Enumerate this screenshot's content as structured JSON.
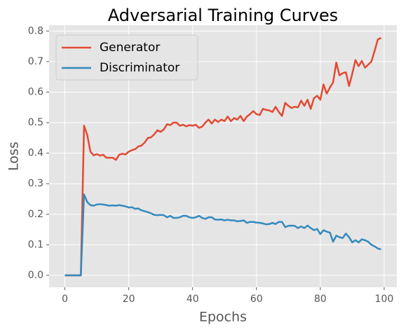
{
  "chart_data": {
    "type": "line",
    "title": "Adversarial Training Curves",
    "xlabel": "Epochs",
    "ylabel": "Loss",
    "x": [
      0,
      1,
      2,
      3,
      4,
      5,
      6,
      7,
      8,
      9,
      10,
      11,
      12,
      13,
      14,
      15,
      16,
      17,
      18,
      19,
      20,
      21,
      22,
      23,
      24,
      25,
      26,
      27,
      28,
      29,
      30,
      31,
      32,
      33,
      34,
      35,
      36,
      37,
      38,
      39,
      40,
      41,
      42,
      43,
      44,
      45,
      46,
      47,
      48,
      49,
      50,
      51,
      52,
      53,
      54,
      55,
      56,
      57,
      58,
      59,
      60,
      61,
      62,
      63,
      64,
      65,
      66,
      67,
      68,
      69,
      70,
      71,
      72,
      73,
      74,
      75,
      76,
      77,
      78,
      79,
      80,
      81,
      82,
      83,
      84,
      85,
      86,
      87,
      88,
      89,
      90,
      91,
      92,
      93,
      94,
      95,
      96,
      97,
      98,
      99
    ],
    "series": [
      {
        "name": "Generator",
        "color": "#E24A33",
        "values": [
          0,
          0,
          0,
          0,
          0,
          0,
          0.49,
          0.46,
          0.405,
          0.393,
          0.397,
          0.392,
          0.395,
          0.385,
          0.385,
          0.385,
          0.378,
          0.395,
          0.398,
          0.396,
          0.405,
          0.41,
          0.413,
          0.422,
          0.425,
          0.435,
          0.45,
          0.452,
          0.462,
          0.475,
          0.47,
          0.478,
          0.495,
          0.492,
          0.5,
          0.5,
          0.49,
          0.493,
          0.488,
          0.492,
          0.49,
          0.493,
          0.483,
          0.487,
          0.5,
          0.51,
          0.497,
          0.51,
          0.502,
          0.51,
          0.505,
          0.52,
          0.505,
          0.515,
          0.51,
          0.522,
          0.505,
          0.52,
          0.528,
          0.538,
          0.528,
          0.525,
          0.545,
          0.542,
          0.54,
          0.535,
          0.552,
          0.535,
          0.522,
          0.565,
          0.555,
          0.548,
          0.552,
          0.55,
          0.572,
          0.555,
          0.575,
          0.545,
          0.58,
          0.588,
          0.575,
          0.625,
          0.595,
          0.615,
          0.632,
          0.697,
          0.655,
          0.662,
          0.665,
          0.62,
          0.66,
          0.705,
          0.685,
          0.702,
          0.68,
          0.69,
          0.7,
          0.735,
          0.772,
          0.778
        ]
      },
      {
        "name": "Discriminator",
        "color": "#348ABD",
        "values": [
          0,
          0,
          0,
          0,
          0,
          0,
          0.265,
          0.24,
          0.23,
          0.228,
          0.232,
          0.233,
          0.232,
          0.23,
          0.228,
          0.229,
          0.228,
          0.23,
          0.228,
          0.226,
          0.222,
          0.223,
          0.218,
          0.219,
          0.213,
          0.21,
          0.207,
          0.203,
          0.198,
          0.197,
          0.198,
          0.197,
          0.19,
          0.195,
          0.188,
          0.188,
          0.19,
          0.195,
          0.195,
          0.19,
          0.188,
          0.19,
          0.195,
          0.188,
          0.185,
          0.19,
          0.19,
          0.183,
          0.182,
          0.183,
          0.18,
          0.182,
          0.18,
          0.18,
          0.177,
          0.178,
          0.18,
          0.172,
          0.175,
          0.175,
          0.173,
          0.172,
          0.17,
          0.167,
          0.168,
          0.172,
          0.168,
          0.175,
          0.175,
          0.158,
          0.162,
          0.163,
          0.162,
          0.155,
          0.16,
          0.155,
          0.163,
          0.155,
          0.148,
          0.152,
          0.135,
          0.148,
          0.143,
          0.14,
          0.11,
          0.13,
          0.125,
          0.122,
          0.137,
          0.125,
          0.108,
          0.115,
          0.108,
          0.118,
          0.115,
          0.11,
          0.1,
          0.095,
          0.088,
          0.085
        ]
      }
    ],
    "xlim": [
      -4.95,
      103.95
    ],
    "ylim": [
      -0.039,
      0.819
    ],
    "xticks": [
      0,
      20,
      40,
      60,
      80,
      100
    ],
    "yticks": [
      {
        "value": 0,
        "label": "0.0"
      },
      {
        "value": 0.1,
        "label": "0.1"
      },
      {
        "value": 0.2,
        "label": "0.2"
      },
      {
        "value": 0.3,
        "label": "0.3"
      },
      {
        "value": 0.4,
        "label": "0.4"
      },
      {
        "value": 0.5,
        "label": "0.5"
      },
      {
        "value": 0.6,
        "label": "0.6"
      },
      {
        "value": 0.7,
        "label": "0.7"
      },
      {
        "value": 0.8,
        "label": "0.8"
      }
    ],
    "grid": true,
    "legend": "upper left"
  }
}
